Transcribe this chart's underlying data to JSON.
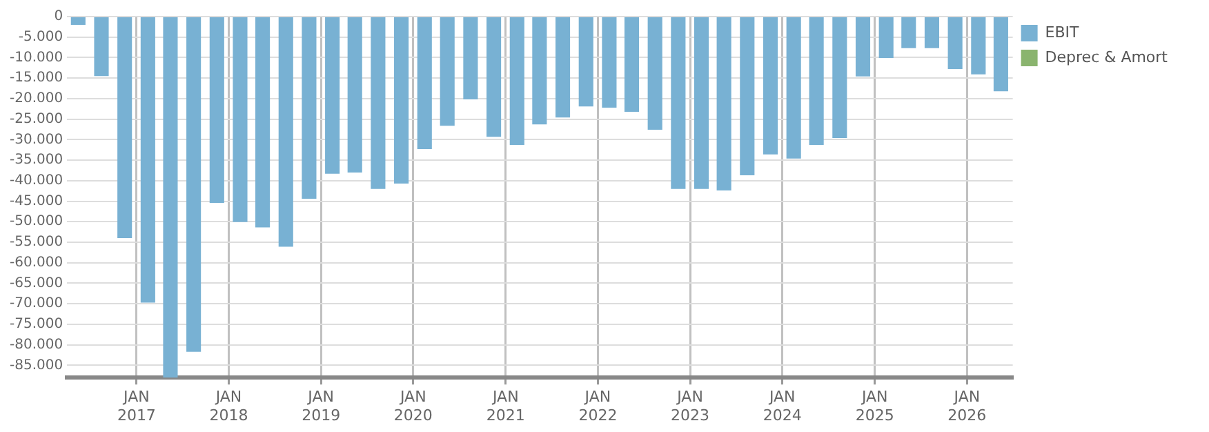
{
  "chart_data": {
    "type": "bar",
    "x": [
      "2016-05-15",
      "2016-08-15",
      "2016-11-15",
      "2017-02-15",
      "2017-05-15",
      "2017-08-15",
      "2017-11-15",
      "2018-02-15",
      "2018-05-15",
      "2018-08-15",
      "2018-11-15",
      "2019-02-15",
      "2019-05-15",
      "2019-08-15",
      "2019-11-15",
      "2020-02-15",
      "2020-05-15",
      "2020-08-15",
      "2020-11-15",
      "2021-02-15",
      "2021-05-15",
      "2021-08-15",
      "2021-11-15",
      "2022-02-15",
      "2022-05-15",
      "2022-08-15",
      "2022-11-15",
      "2023-02-15",
      "2023-05-15",
      "2023-08-15",
      "2023-11-15",
      "2024-02-15",
      "2024-05-15",
      "2024-08-15",
      "2024-11-15",
      "2025-02-15",
      "2025-05-15",
      "2025-08-15",
      "2025-11-15",
      "2026-02-15",
      "2026-05-15"
    ],
    "series": [
      {
        "name": "EBIT",
        "color": "#78b1d3",
        "values": [
          -2000,
          -14500,
          -54000,
          -69700,
          -88000,
          -81700,
          -45400,
          -50100,
          -51400,
          -56100,
          -44400,
          -38300,
          -38000,
          -42000,
          -40700,
          -32300,
          -26600,
          -20200,
          -29300,
          -31300,
          -26300,
          -24600,
          -21900,
          -22200,
          -23200,
          -27600,
          -42000,
          -42000,
          -42400,
          -38700,
          -33600,
          -34600,
          -31300,
          -29600,
          -14600,
          -10100,
          -7700,
          -7700,
          -12800,
          -14100,
          -18200
        ]
      },
      {
        "name": "Deprec & Amort",
        "color": "#8ab46e",
        "values": [
          null,
          null,
          null,
          null,
          null,
          null,
          null,
          null,
          null,
          null,
          null,
          null,
          null,
          null,
          null,
          null,
          null,
          null,
          null,
          null,
          null,
          null,
          null,
          null,
          null,
          null,
          null,
          null,
          null,
          null,
          null,
          null,
          null,
          null,
          null,
          null,
          null,
          null,
          null,
          null,
          null
        ]
      }
    ],
    "xlim": [
      "2016-04-01",
      "2026-07-01"
    ],
    "xticks": [
      {
        "value": "2017-01-01",
        "label": "JAN 2017"
      },
      {
        "value": "2018-01-01",
        "label": "JAN 2018"
      },
      {
        "value": "2019-01-01",
        "label": "JAN 2019"
      },
      {
        "value": "2020-01-01",
        "label": "JAN 2020"
      },
      {
        "value": "2021-01-01",
        "label": "JAN 2021"
      },
      {
        "value": "2022-01-01",
        "label": "JAN 2022"
      },
      {
        "value": "2023-01-01",
        "label": "JAN 2023"
      },
      {
        "value": "2024-01-01",
        "label": "JAN 2024"
      },
      {
        "value": "2025-01-01",
        "label": "JAN 2025"
      },
      {
        "value": "2026-01-01",
        "label": "JAN 2026"
      }
    ],
    "ylim": [
      -88000,
      0
    ],
    "yticks": [
      {
        "value": -85000,
        "label": "-85.000"
      },
      {
        "value": -80000,
        "label": "-80.000"
      },
      {
        "value": -75000,
        "label": "-75.000"
      },
      {
        "value": -70000,
        "label": "-70.000"
      },
      {
        "value": -65000,
        "label": "-65.000"
      },
      {
        "value": -60000,
        "label": "-60.000"
      },
      {
        "value": -55000,
        "label": "-55.000"
      },
      {
        "value": -50000,
        "label": "-50.000"
      },
      {
        "value": -45000,
        "label": "-45.000"
      },
      {
        "value": -40000,
        "label": "-40.000"
      },
      {
        "value": -35000,
        "label": "-35.000"
      },
      {
        "value": -30000,
        "label": "-30.000"
      },
      {
        "value": -25000,
        "label": "-25.000"
      },
      {
        "value": -20000,
        "label": "-20.000"
      },
      {
        "value": -15000,
        "label": "-15.000"
      },
      {
        "value": -10000,
        "label": "-10.000"
      },
      {
        "value": -5000,
        "label": "-5.000"
      },
      0
    ],
    "grid": true,
    "legend": "top right"
  }
}
